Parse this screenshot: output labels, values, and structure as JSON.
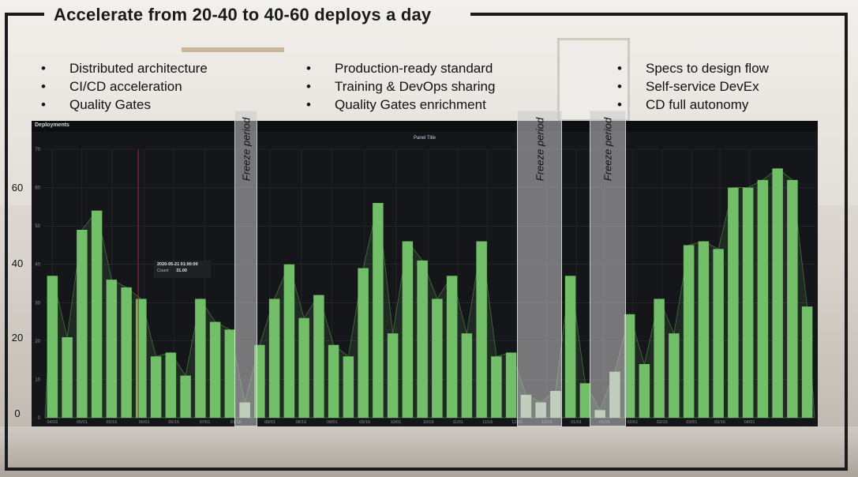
{
  "title": "Accelerate from 20-40 to 40-60 deploys a day",
  "bullet_columns": [
    {
      "items": [
        "Distributed architecture",
        "CI/CD acceleration",
        "Quality Gates"
      ]
    },
    {
      "items": [
        "Production-ready standard",
        "Training & DevOps sharing",
        "Quality Gates enrichment"
      ]
    },
    {
      "items": [
        "Specs to design flow",
        "Self-service DevEx",
        "CD full autonomy"
      ]
    }
  ],
  "freeze_label": "Freeze period",
  "tooltip": {
    "time": "2020-05-21 01:00:00",
    "series": "Count",
    "value": "31.00"
  },
  "chart_data": {
    "type": "bar",
    "panel_header": "Deployments",
    "title": "Panel Title",
    "series": [
      {
        "name": "Count",
        "color": "#73bf69",
        "values": [
          37,
          21,
          49,
          54,
          36,
          34,
          31,
          16,
          17,
          11,
          31,
          25,
          23,
          4,
          19,
          31,
          40,
          26,
          32,
          19,
          16,
          39,
          56,
          22,
          46,
          41,
          31,
          37,
          22,
          46,
          16,
          17,
          6,
          4,
          7,
          37,
          9,
          2,
          12,
          27,
          14,
          31,
          22,
          45,
          46,
          44,
          60,
          60,
          62,
          65,
          62,
          29
        ]
      }
    ],
    "freeze_bar_indices": [
      13,
      32,
      33,
      34,
      37,
      38
    ],
    "ylim": [
      0,
      70
    ],
    "inner_y_ticks": [
      0,
      10,
      20,
      30,
      40,
      50,
      60,
      70
    ],
    "outer_y_ticks": [
      0,
      20,
      40,
      60
    ],
    "x_tick_labels": [
      "04/16",
      "05/01",
      "05/16",
      "06/01",
      "06/16",
      "07/01",
      "07/16",
      "08/01",
      "08/16",
      "09/01",
      "09/16",
      "10/01",
      "10/16",
      "11/01",
      "11/16",
      "12/01",
      "12/16",
      "01/01",
      "01/16",
      "02/01",
      "02/15",
      "03/01",
      "03/16",
      "04/01"
    ],
    "x_tick_after_bar": [
      0.5,
      2.5,
      4.5,
      6.7,
      8.7,
      10.8,
      12.9,
      15.2,
      17.3,
      19.4,
      21.6,
      23.7,
      25.9,
      27.9,
      29.9,
      31.9,
      33.9,
      35.9,
      37.8,
      39.7,
      41.7,
      43.7,
      45.6,
      47.6
    ],
    "grid": true,
    "legend": "none",
    "colors": {
      "bar": "#73bf69",
      "freeze_bar": "#b8d6b2",
      "panel_bg": "#141619",
      "grid": "#2a2d33",
      "marker": "#c4162a"
    }
  }
}
